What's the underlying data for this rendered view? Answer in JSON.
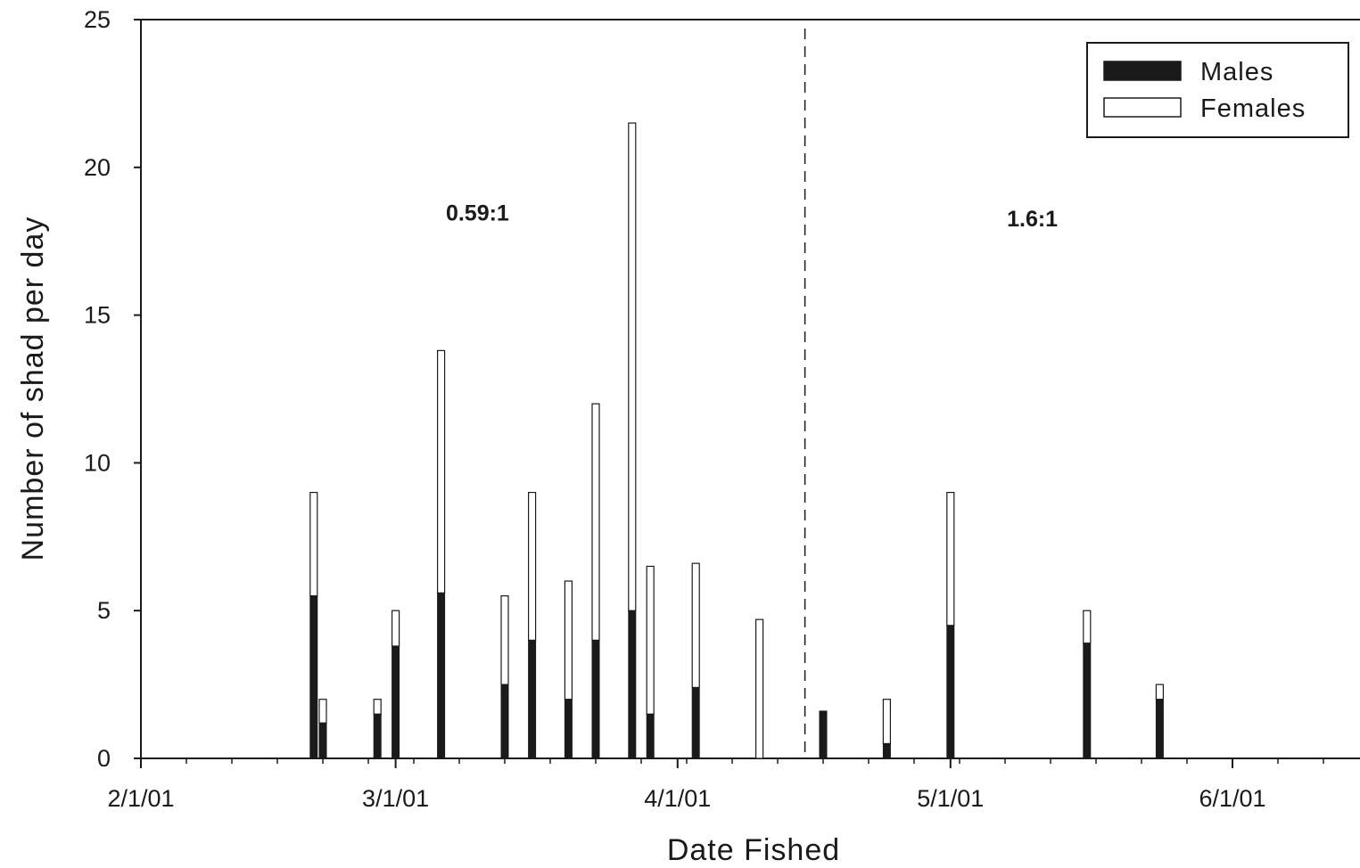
{
  "chart_data": {
    "type": "bar",
    "stacked": true,
    "xlabel": "Date Fished",
    "ylabel": "Number of shad per day",
    "ylim": [
      0,
      25
    ],
    "y_ticks": [
      0,
      5,
      10,
      15,
      20,
      25
    ],
    "x_ticks": [
      "2/1/01",
      "3/1/01",
      "4/1/01",
      "5/1/01",
      "6/1/01"
    ],
    "grid": false,
    "legend_position": "top-right",
    "divider_date": "4/15/01",
    "annotations": [
      {
        "text": "0.59:1",
        "date": "3/10/01",
        "y": 18.2
      },
      {
        "text": "1.6:1",
        "date": "5/10/01",
        "y": 18.0
      }
    ],
    "series": [
      {
        "name": "Males",
        "color": "#1a1a1a"
      },
      {
        "name": "Females",
        "color": "#ffffff"
      }
    ],
    "dates": [
      "2/20/01",
      "2/21/01",
      "2/27/01",
      "3/1/01",
      "3/6/01",
      "3/13/01",
      "3/16/01",
      "3/20/01",
      "3/23/01",
      "3/27/01",
      "3/29/01",
      "4/3/01",
      "4/10/01",
      "4/17/01",
      "4/24/01",
      "5/1/01",
      "5/16/01",
      "5/24/01"
    ],
    "males": [
      5.5,
      1.2,
      1.5,
      3.8,
      5.6,
      2.5,
      4.0,
      2.0,
      4.0,
      5.0,
      1.5,
      2.4,
      0.0,
      1.6,
      0.5,
      4.5,
      3.9,
      2.0
    ],
    "females": [
      3.5,
      0.8,
      0.5,
      1.2,
      8.2,
      3.0,
      5.0,
      4.0,
      8.0,
      16.5,
      5.0,
      4.2,
      4.7,
      0.0,
      1.5,
      4.5,
      1.1,
      0.5
    ]
  }
}
